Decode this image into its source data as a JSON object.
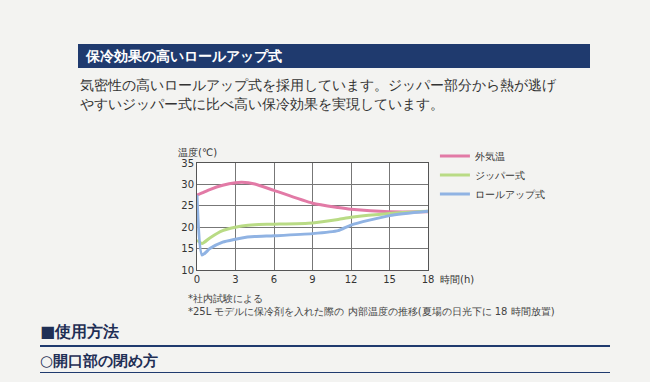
{
  "heading": "保冷効果の高いロールアップ式",
  "paragraph": [
    "気密性の高いロールアップ式を採用しています。ジッパー部分から熱が逃げ",
    "やすいジッパー式に比べ高い保冷効果を実現しています。"
  ],
  "chart_data": {
    "type": "line",
    "xlabel": "時間(h)",
    "ylabel": "温度(℃)",
    "x": [
      0,
      0.4,
      1,
      2,
      3,
      3.5,
      4.5,
      6,
      9,
      11,
      12,
      15,
      18
    ],
    "series": [
      {
        "name": "外気温",
        "color": "#e27aa6",
        "values": [
          27.5,
          28,
          28.8,
          29.8,
          30.4,
          30.5,
          30.1,
          28.6,
          25.6,
          24.6,
          24.2,
          23.6,
          23.6
        ]
      },
      {
        "name": "ジッパー式",
        "color": "#b9db85",
        "values": [
          17,
          16.2,
          17.5,
          19.2,
          20,
          20.3,
          20.6,
          20.7,
          21,
          21.8,
          22.3,
          23.2,
          23.7
        ]
      },
      {
        "name": "ロールアップ式",
        "color": "#90b3e3",
        "values": [
          27.5,
          13.5,
          15,
          16.5,
          17.2,
          17.5,
          17.8,
          18,
          18.5,
          19.2,
          20.5,
          22.7,
          23.7
        ]
      }
    ],
    "xlim": [
      0,
      18
    ],
    "xticks": [
      0,
      3,
      6,
      9,
      12,
      15,
      18
    ],
    "ylim": [
      10,
      35
    ],
    "yticks": [
      10,
      15,
      20,
      25,
      30,
      35
    ],
    "grid": true,
    "legend": "upper right"
  },
  "footnotes": [
    "*社内試験による",
    "*25L モデルに保冷剤を入れた際の 内部温度の推移(夏場の日光下に 18 時間放置)"
  ],
  "section": "■使用方法",
  "subsection": "○開口部の閉め方"
}
